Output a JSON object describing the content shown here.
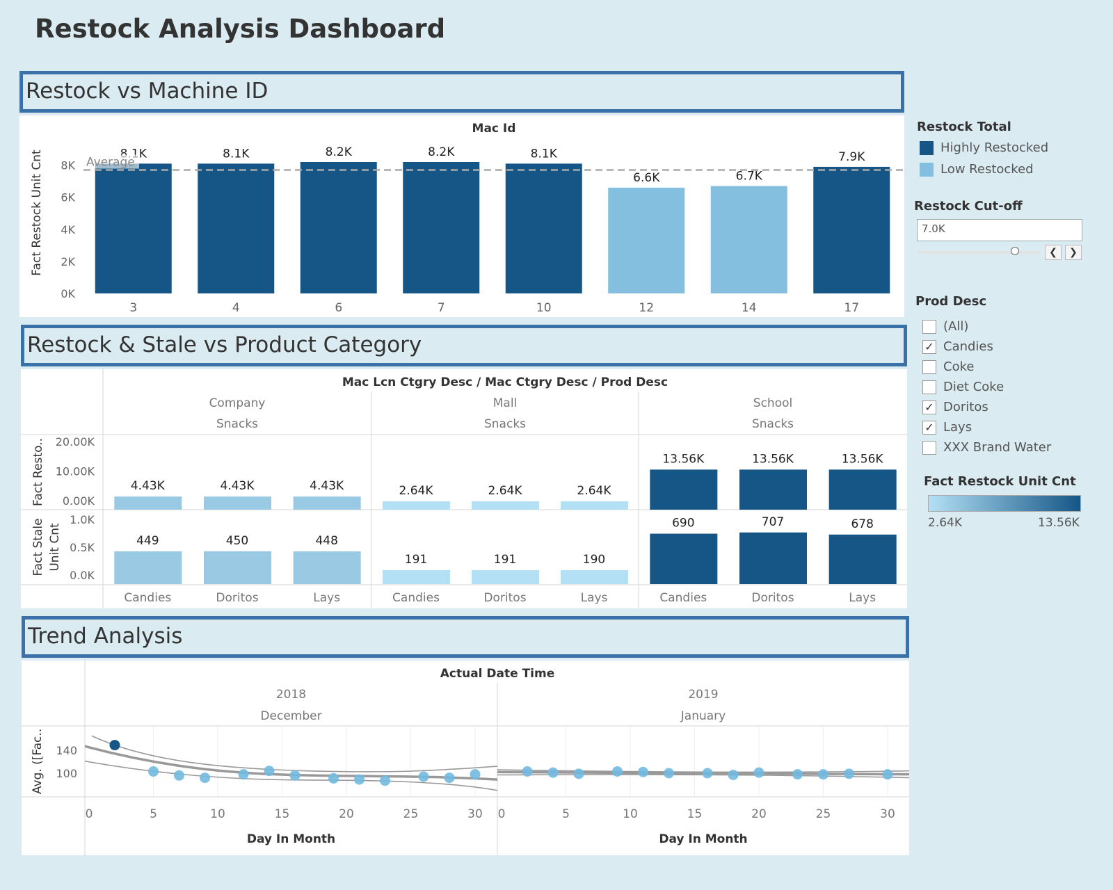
{
  "page_title": "Restock Analysis Dashboard",
  "sections": {
    "machine": "Restock vs Machine ID",
    "category": "Restock & Stale vs Product Category",
    "trend": "Trend Analysis"
  },
  "sidebar": {
    "restock_total_title": "Restock Total",
    "restock_total_items": [
      {
        "label": "Highly Restocked",
        "color": "#155687"
      },
      {
        "label": "Low Restocked",
        "color": "#84bfe0"
      }
    ],
    "cutoff_title": "Restock Cut-off",
    "cutoff_value": "7.0K",
    "cutoff_slider_fraction": 0.7,
    "prod_desc_title": "Prod Desc",
    "prod_desc_items": [
      {
        "label": "(All)",
        "checked": false
      },
      {
        "label": "Candies",
        "checked": true
      },
      {
        "label": "Coke",
        "checked": false
      },
      {
        "label": "Diet Coke",
        "checked": false
      },
      {
        "label": "Doritos",
        "checked": true
      },
      {
        "label": "Lays",
        "checked": true
      },
      {
        "label": "XXX Brand Water",
        "checked": false
      }
    ],
    "color_legend_title": "Fact Restock Unit Cnt",
    "color_legend_min": "2.64K",
    "color_legend_max": "13.56K"
  },
  "chart_data": [
    {
      "type": "bar",
      "title": "Mac Id",
      "ylabel": "Fact Restock Unit Cnt",
      "categories": [
        "3",
        "4",
        "6",
        "7",
        "10",
        "12",
        "14",
        "17"
      ],
      "values": [
        8100,
        8100,
        8200,
        8200,
        8100,
        6600,
        6700,
        7900
      ],
      "labels": [
        "8.1K",
        "8.1K",
        "8.2K",
        "8.2K",
        "8.1K",
        "6.6K",
        "6.7K",
        "7.9K"
      ],
      "classes": [
        "Highly Restocked",
        "Highly Restocked",
        "Highly Restocked",
        "Highly Restocked",
        "Highly Restocked",
        "Low Restocked",
        "Low Restocked",
        "Highly Restocked"
      ],
      "yticks": [
        "0K",
        "2K",
        "4K",
        "6K",
        "8K"
      ],
      "ylim": [
        0,
        8200
      ],
      "reference_line": {
        "label": "Average",
        "value": 7700
      }
    },
    {
      "type": "bar",
      "title": "Mac Lcn Ctgry Desc / Mac Ctgry Desc / Prod Desc",
      "groups": [
        {
          "location": "Company",
          "category": "Snacks"
        },
        {
          "location": "Mall",
          "category": "Snacks"
        },
        {
          "location": "School",
          "category": "Snacks"
        }
      ],
      "products": [
        "Candies",
        "Doritos",
        "Lays"
      ],
      "series": [
        {
          "name": "Fact Resto..",
          "values": [
            4430,
            4430,
            4430,
            2640,
            2640,
            2640,
            13560,
            13560,
            13560
          ],
          "labels": [
            "4.43K",
            "4.43K",
            "4.43K",
            "2.64K",
            "2.64K",
            "2.64K",
            "13.56K",
            "13.56K",
            "13.56K"
          ],
          "yticks": [
            "0.00K",
            "10.00K",
            "20.00K"
          ],
          "ylim": [
            0,
            20000
          ]
        },
        {
          "name": "Fact Stale Unit Cnt",
          "values": [
            449,
            450,
            448,
            191,
            191,
            190,
            690,
            707,
            678
          ],
          "labels": [
            "449",
            "450",
            "448",
            "191",
            "191",
            "190",
            "690",
            "707",
            "678"
          ],
          "yticks": [
            "0.0K",
            "0.5K",
            "1.0K"
          ],
          "ylim": [
            0,
            1000
          ]
        }
      ],
      "color_scale": [
        "#b3e0f5",
        "#155687"
      ]
    },
    {
      "type": "scatter",
      "title": "Actual Date Time",
      "ylabel": "Avg. ([Fac..",
      "xlabel": "Day In Month",
      "yticks": [
        "100",
        "140"
      ],
      "ylim": [
        60,
        160
      ],
      "panels": [
        {
          "year": "2018",
          "month": "December",
          "xticks": [
            "0",
            "5",
            "10",
            "15",
            "20",
            "25",
            "30"
          ],
          "xlim": [
            0,
            32
          ],
          "points": [
            [
              2,
              149,
              true
            ],
            [
              5,
              103,
              false
            ],
            [
              7,
              96,
              false
            ],
            [
              9,
              92,
              false
            ],
            [
              12,
              98,
              false
            ],
            [
              14,
              104,
              false
            ],
            [
              16,
              96,
              false
            ],
            [
              19,
              91,
              false
            ],
            [
              21,
              89,
              false
            ],
            [
              23,
              87,
              false
            ],
            [
              26,
              94,
              false
            ],
            [
              28,
              92,
              false
            ],
            [
              30,
              98,
              false
            ]
          ]
        },
        {
          "year": "2019",
          "month": "January",
          "xticks": [
            "0",
            "5",
            "10",
            "15",
            "20",
            "25",
            "30"
          ],
          "xlim": [
            0,
            32
          ],
          "points": [
            [
              2,
              103,
              false
            ],
            [
              4,
              101,
              false
            ],
            [
              6,
              99,
              false
            ],
            [
              9,
              103,
              false
            ],
            [
              11,
              102,
              false
            ],
            [
              13,
              100,
              false
            ],
            [
              16,
              100,
              false
            ],
            [
              18,
              97,
              false
            ],
            [
              20,
              101,
              false
            ],
            [
              23,
              98,
              false
            ],
            [
              25,
              98,
              false
            ],
            [
              27,
              99,
              false
            ],
            [
              30,
              98,
              false
            ]
          ]
        }
      ]
    }
  ]
}
